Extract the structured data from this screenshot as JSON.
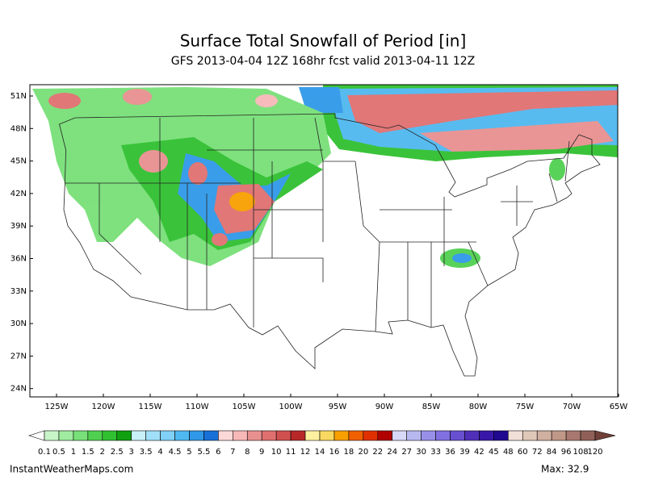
{
  "header": {
    "title": "Surface Total Snowfall of Period [in]",
    "subtitle": "GFS 2013-04-04 12Z 168hr fcst valid 2013-04-11 12Z"
  },
  "map": {
    "lat_labels": [
      "51N",
      "48N",
      "45N",
      "42N",
      "39N",
      "36N",
      "33N",
      "30N",
      "27N",
      "24N"
    ],
    "lon_labels": [
      "125W",
      "120W",
      "115W",
      "110W",
      "105W",
      "100W",
      "95W",
      "90W",
      "85W",
      "80W",
      "75W",
      "70W",
      "65W"
    ]
  },
  "colorbar": {
    "labels": [
      "0.1",
      "0.5",
      "1",
      "1.5",
      "2",
      "2.5",
      "3",
      "3.5",
      "4",
      "4.5",
      "5",
      "5.5",
      "6",
      "7",
      "8",
      "9",
      "10",
      "11",
      "12",
      "14",
      "16",
      "18",
      "20",
      "22",
      "24",
      "27",
      "30",
      "33",
      "36",
      "39",
      "42",
      "45",
      "48",
      "60",
      "72",
      "84",
      "96",
      "108",
      "120"
    ],
    "colors": [
      "#c8f5c8",
      "#a0eca0",
      "#78e078",
      "#50d050",
      "#30c030",
      "#10a010",
      "#c8f0f8",
      "#a0e0f8",
      "#80d0f8",
      "#50b8f0",
      "#3098e8",
      "#1870d8",
      "#fdd8d8",
      "#f8b8b8",
      "#e89090",
      "#e07070",
      "#d05050",
      "#b82828",
      "#fff0a0",
      "#f8d860",
      "#f8a000",
      "#f06000",
      "#e03000",
      "#b00000",
      "#d8d8f8",
      "#b8b8f0",
      "#9890e8",
      "#8070e0",
      "#6850d0",
      "#5030b8",
      "#3818a8",
      "#200890",
      "#f0e0d8",
      "#e0c8b8",
      "#d0b0a0",
      "#c09888",
      "#a87870",
      "#906058"
    ],
    "under_color": "#ffffff",
    "over_color": "#704038"
  },
  "footer": {
    "source": "InstantWeatherMaps.com",
    "max": "Max:  32.9"
  }
}
